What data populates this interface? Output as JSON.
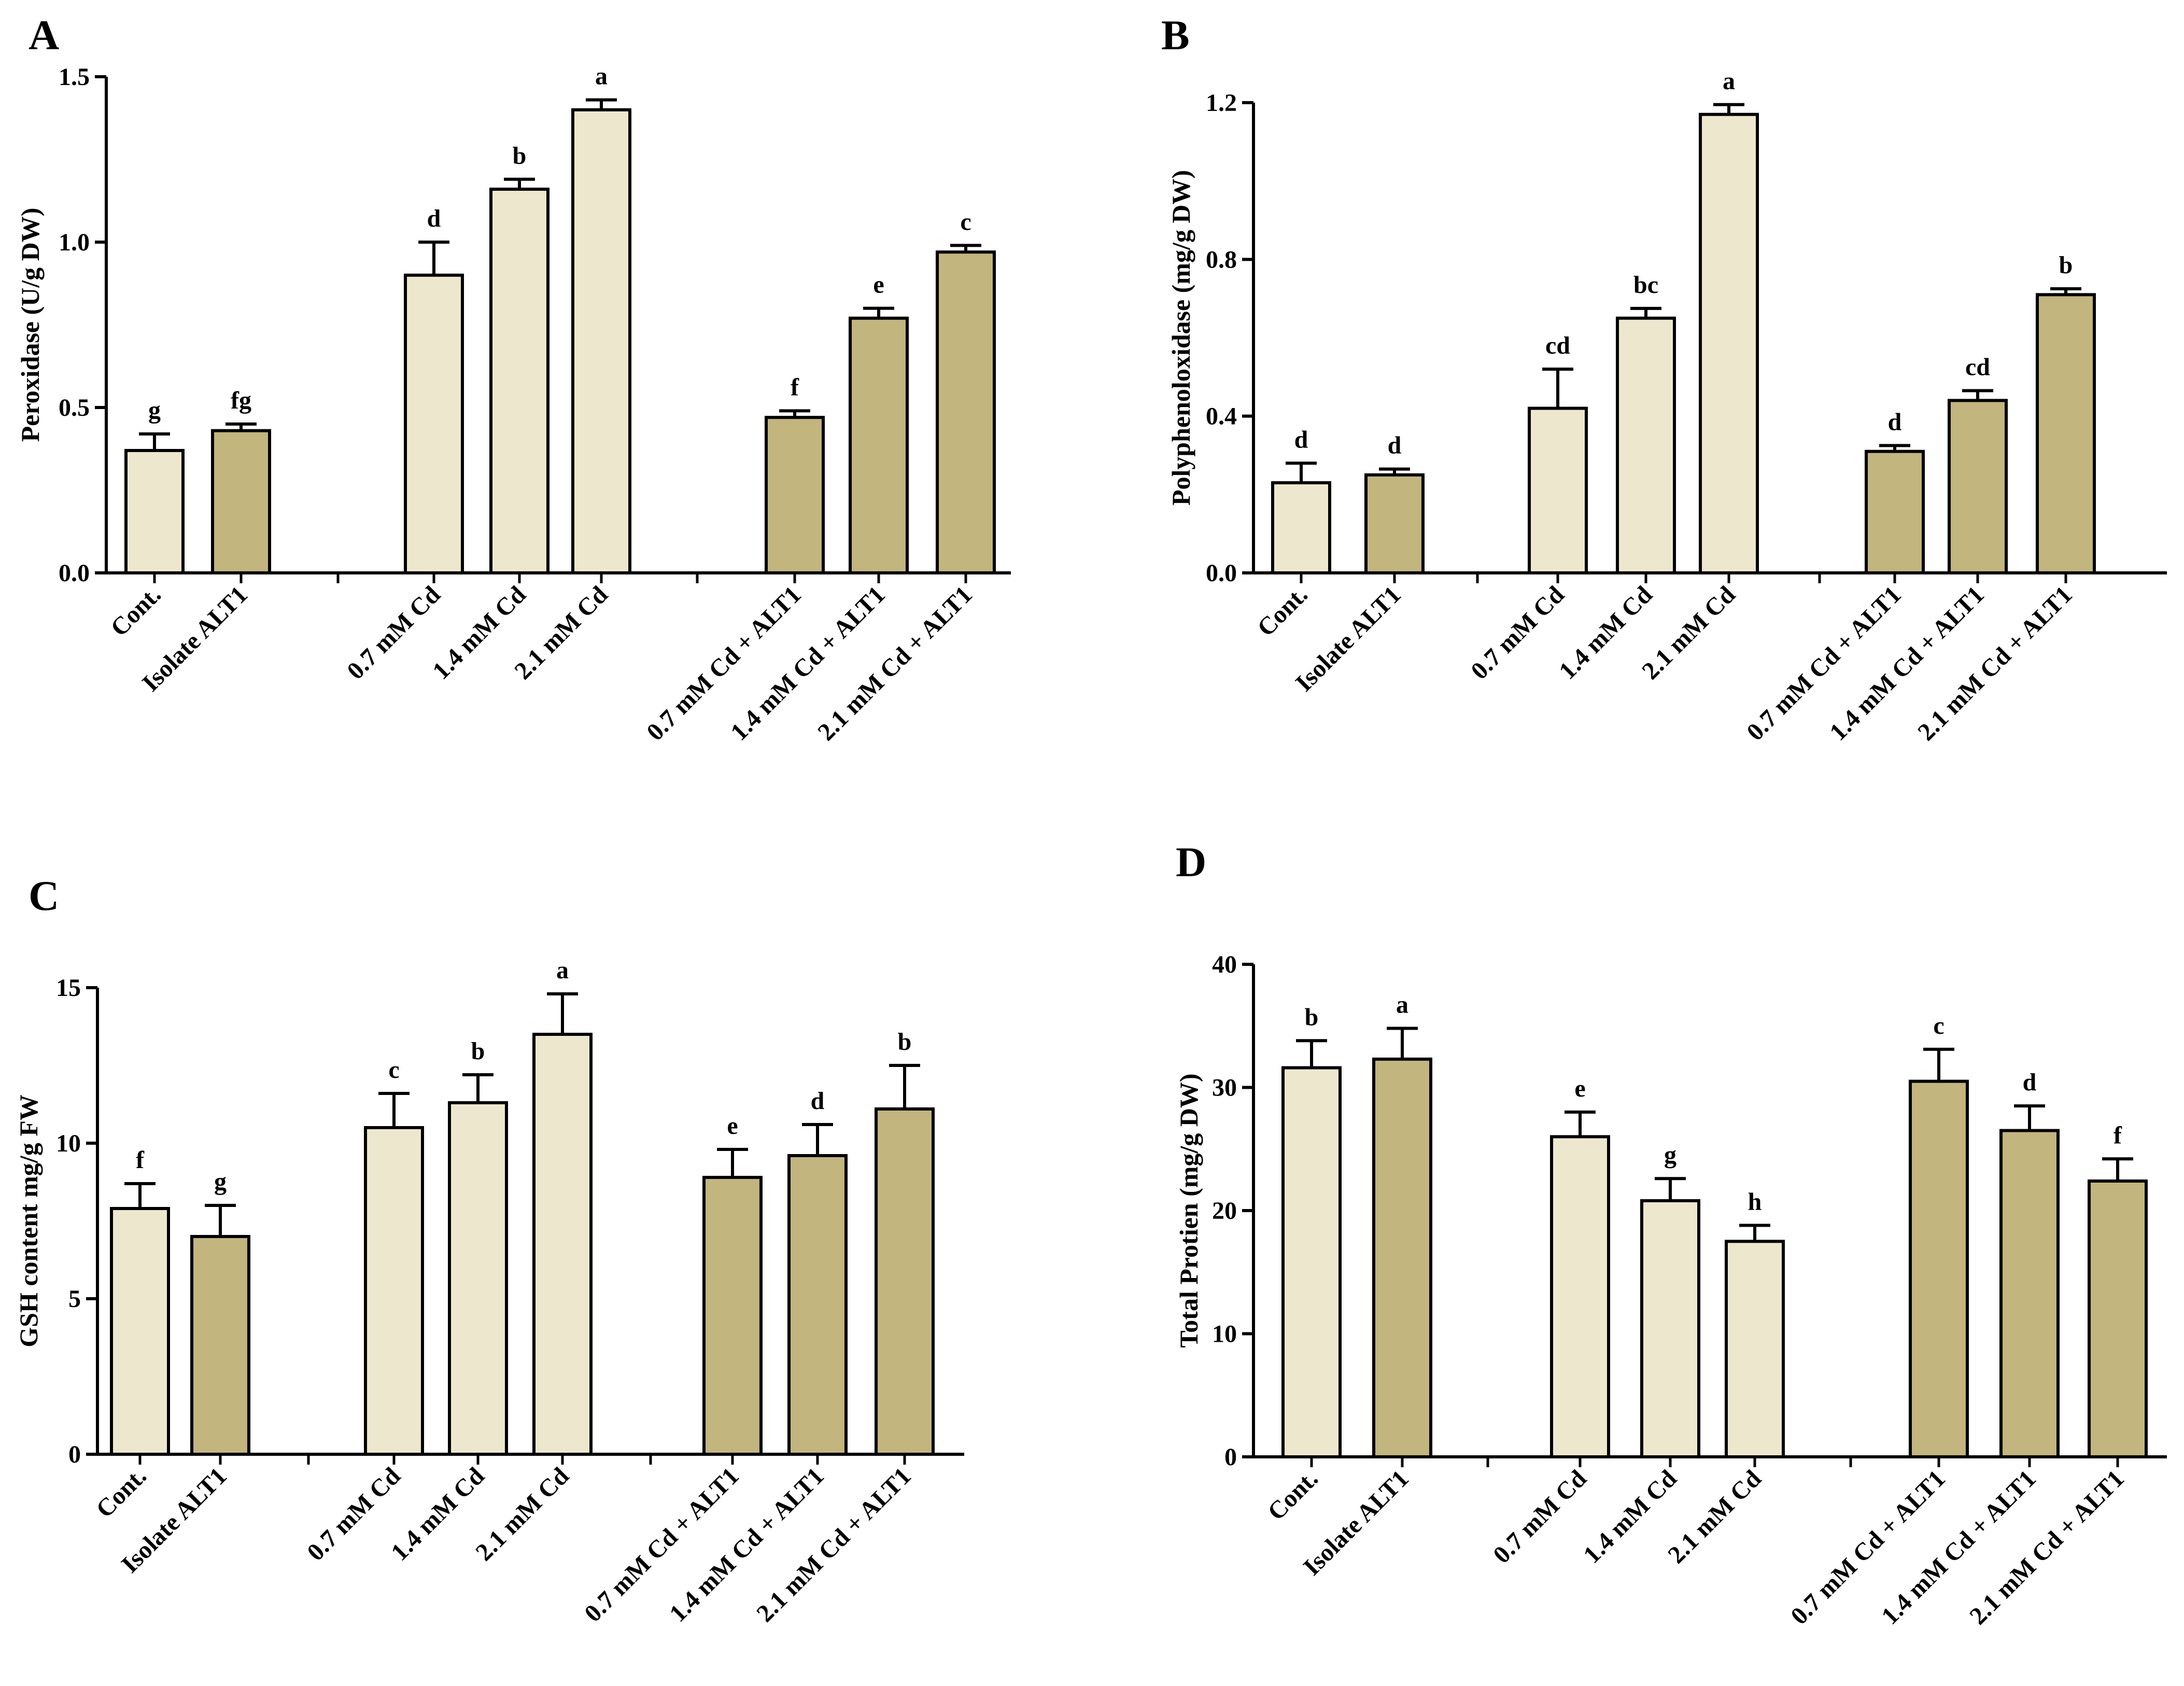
{
  "colors": {
    "light": "#ede8cd",
    "dark": "#c2b57d",
    "stroke": "#000000"
  },
  "chart_data": [
    {
      "type": "bar",
      "panel": "A",
      "ylabel": "Peroxidase (U/g DW)",
      "ylim": [
        0,
        1.5
      ],
      "yticks": [
        "0.0",
        "0.5",
        "1.0",
        "1.5"
      ],
      "ytick_values": [
        0,
        0.5,
        1.0,
        1.5
      ],
      "categories": [
        "Cont.",
        "Isolate ALT1",
        "0.7 mM Cd",
        "1.4 mM Cd",
        "2.1 mM Cd",
        "0.7 mM Cd + ALT1",
        "1.4 mM Cd + ALT1",
        "2.1 mM Cd + ALT1"
      ],
      "values": [
        0.37,
        0.43,
        0.9,
        1.16,
        1.4,
        0.47,
        0.77,
        0.97
      ],
      "errors": [
        0.05,
        0.02,
        0.1,
        0.03,
        0.03,
        0.02,
        0.03,
        0.02
      ],
      "letters": [
        "g",
        "fg",
        "d",
        "b",
        "a",
        "f",
        "e",
        "c"
      ],
      "shade": [
        "light",
        "dark",
        "light",
        "light",
        "light",
        "dark",
        "dark",
        "dark"
      ]
    },
    {
      "type": "bar",
      "panel": "B",
      "ylabel": "Polyphenoloxidase (mg/g DW)",
      "ylim": [
        0,
        1.2
      ],
      "yticks": [
        "0.0",
        "0.4",
        "0.8",
        "1.2"
      ],
      "ytick_values": [
        0,
        0.4,
        0.8,
        1.2
      ],
      "categories": [
        "Cont.",
        "Isolate ALT1",
        "0.7 mM Cd",
        "1.4 mM Cd",
        "2.1 mM Cd",
        "0.7 mM Cd + ALT1",
        "1.4 mM Cd + ALT1",
        "2.1 mM Cd + ALT1"
      ],
      "values": [
        0.23,
        0.25,
        0.42,
        0.65,
        1.17,
        0.31,
        0.44,
        0.71
      ],
      "errors": [
        0.05,
        0.015,
        0.1,
        0.025,
        0.025,
        0.015,
        0.025,
        0.015
      ],
      "letters": [
        "d",
        "d",
        "cd",
        "bc",
        "a",
        "d",
        "cd",
        "b"
      ],
      "shade": [
        "light",
        "dark",
        "light",
        "light",
        "light",
        "dark",
        "dark",
        "dark"
      ]
    },
    {
      "type": "bar",
      "panel": "C",
      "ylabel": "GSH content mg/g FW",
      "ylim": [
        0,
        15
      ],
      "yticks": [
        "0",
        "5",
        "10",
        "15"
      ],
      "ytick_values": [
        0,
        5,
        10,
        15
      ],
      "categories": [
        "Cont.",
        "Isolate ALT1",
        "0.7 mM Cd",
        "1.4 mM Cd",
        "2.1 mM Cd",
        "0.7 mM Cd + ALT1",
        "1.4 mM Cd + ALT1",
        "2.1 mM Cd + ALT1"
      ],
      "values": [
        7.9,
        7.0,
        10.5,
        11.3,
        13.5,
        8.9,
        9.6,
        11.1
      ],
      "errors": [
        0.8,
        1.0,
        1.1,
        0.9,
        1.3,
        0.9,
        1.0,
        1.4
      ],
      "letters": [
        "f",
        "g",
        "c",
        "b",
        "a",
        "e",
        "d",
        "b"
      ],
      "shade": [
        "light",
        "dark",
        "light",
        "light",
        "light",
        "dark",
        "dark",
        "dark"
      ]
    },
    {
      "type": "bar",
      "panel": "D",
      "ylabel": "Total Protien (mg/g DW)",
      "ylim": [
        0,
        40
      ],
      "yticks": [
        "0",
        "10",
        "20",
        "30",
        "40"
      ],
      "ytick_values": [
        0,
        10,
        20,
        30,
        40
      ],
      "categories": [
        "Cont.",
        "Isolate ALT1",
        "0.7 mM Cd",
        "1.4 mM Cd",
        "2.1 mM Cd",
        "0.7 mM Cd + ALT1",
        "1.4 mM Cd + ALT1",
        "2.1 mM Cd + ALT1"
      ],
      "values": [
        31.6,
        32.3,
        26.0,
        20.8,
        17.5,
        30.5,
        26.5,
        22.4
      ],
      "errors": [
        2.2,
        2.5,
        2.0,
        1.8,
        1.3,
        2.6,
        2.0,
        1.8
      ],
      "letters": [
        "b",
        "a",
        "e",
        "g",
        "h",
        "c",
        "d",
        "f"
      ],
      "shade": [
        "light",
        "dark",
        "light",
        "light",
        "light",
        "dark",
        "dark",
        "dark"
      ]
    }
  ]
}
